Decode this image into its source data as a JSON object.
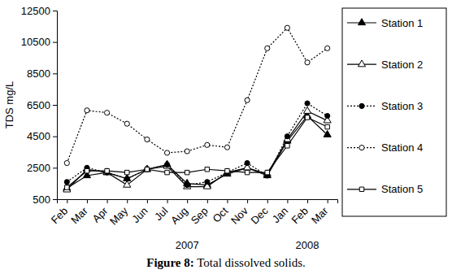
{
  "chart_data": {
    "type": "line",
    "title": "Figure 8: Total dissolved solids.",
    "y_label": "TDS mg/L",
    "categories": [
      "Feb",
      "Mar",
      "Apr",
      "May",
      "Jun",
      "Jul",
      "Aug",
      "Sep",
      "Oct",
      "Nov",
      "Dec",
      "Jan",
      "Feb",
      "Mar"
    ],
    "annotations": [
      {
        "text": "2007",
        "x": 6
      },
      {
        "text": "2008",
        "x": 12
      }
    ],
    "ylim": [
      500,
      12500
    ],
    "yticks": [
      500,
      2500,
      4500,
      6500,
      8500,
      10500,
      12500
    ],
    "grid": false,
    "legend": "right",
    "series": [
      {
        "name": "Station 1",
        "color": "#000000",
        "marker": "triangle",
        "line_style": "solid",
        "values": [
          1200,
          2000,
          2200,
          1800,
          2400,
          2700,
          1500,
          1400,
          2100,
          2500,
          2000,
          4200,
          5800,
          4600
        ]
      },
      {
        "name": "Station 2",
        "color": "#000000",
        "marker": "triangle-open",
        "line_style": "solid",
        "values": [
          1100,
          2400,
          2200,
          1400,
          2400,
          2600,
          1300,
          1300,
          2200,
          2500,
          2100,
          4300,
          6100,
          5500
        ]
      },
      {
        "name": "Station 3",
        "color": "#000000",
        "marker": "circle",
        "line_style": "dotted",
        "values": [
          1600,
          2500,
          2200,
          1800,
          2400,
          2700,
          1400,
          1600,
          2200,
          2800,
          2000,
          4500,
          6600,
          5800
        ]
      },
      {
        "name": "Station 4",
        "color": "#000000",
        "marker": "circle-open",
        "line_style": "dotted",
        "values": [
          2800,
          6150,
          6000,
          5300,
          4300,
          3450,
          3550,
          3950,
          3800,
          6800,
          10100,
          11400,
          9200,
          10100
        ]
      },
      {
        "name": "Station 5",
        "color": "#000000",
        "marker": "square-open",
        "line_style": "solid",
        "values": [
          1250,
          2300,
          2300,
          2200,
          2400,
          2200,
          2200,
          2400,
          2300,
          2200,
          2200,
          3900,
          5700,
          5100
        ]
      }
    ]
  }
}
